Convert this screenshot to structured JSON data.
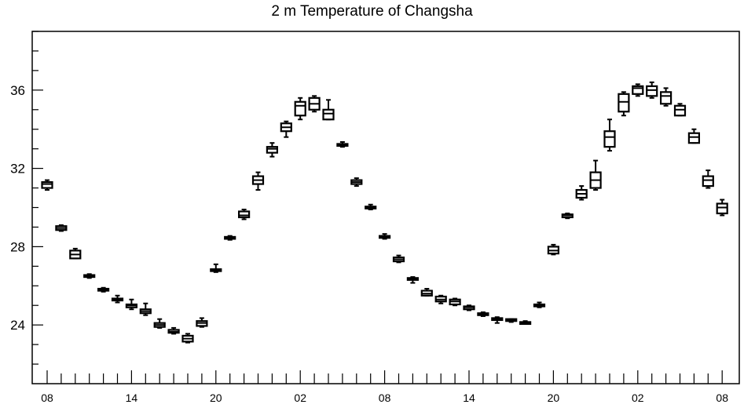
{
  "chart_data": {
    "type": "boxplot",
    "title": "2 m Temperature of Changsha",
    "xlabel": "",
    "ylabel": "",
    "ylim": [
      21,
      39
    ],
    "yticks": [
      24,
      28,
      32,
      36
    ],
    "xticks": [
      "08",
      "14",
      "20",
      "02",
      "08",
      "14",
      "20",
      "02",
      "08"
    ],
    "grid": false,
    "boxes": [
      {
        "x": 0,
        "min": 30.9,
        "q1": 31.0,
        "median": 31.2,
        "q3": 31.3,
        "max": 31.4
      },
      {
        "x": 1,
        "min": 28.8,
        "q1": 28.85,
        "median": 28.95,
        "q3": 29.05,
        "max": 29.1
      },
      {
        "x": 2,
        "min": 27.4,
        "q1": 27.4,
        "median": 27.6,
        "q3": 27.8,
        "max": 27.9
      },
      {
        "x": 3,
        "min": 26.4,
        "q1": 26.45,
        "median": 26.5,
        "q3": 26.55,
        "max": 26.6
      },
      {
        "x": 4,
        "min": 25.7,
        "q1": 25.75,
        "median": 25.8,
        "q3": 25.85,
        "max": 25.9
      },
      {
        "x": 5,
        "min": 25.15,
        "q1": 25.25,
        "median": 25.3,
        "q3": 25.35,
        "max": 25.5
      },
      {
        "x": 6,
        "min": 24.8,
        "q1": 24.9,
        "median": 25.0,
        "q3": 25.05,
        "max": 25.3
      },
      {
        "x": 7,
        "min": 24.5,
        "q1": 24.6,
        "median": 24.7,
        "q3": 24.8,
        "max": 25.1
      },
      {
        "x": 8,
        "min": 23.85,
        "q1": 23.9,
        "median": 24.0,
        "q3": 24.1,
        "max": 24.3
      },
      {
        "x": 9,
        "min": 23.55,
        "q1": 23.6,
        "median": 23.65,
        "q3": 23.75,
        "max": 23.85
      },
      {
        "x": 10,
        "min": 23.1,
        "q1": 23.15,
        "median": 23.3,
        "q3": 23.45,
        "max": 23.55
      },
      {
        "x": 11,
        "min": 23.9,
        "q1": 23.95,
        "median": 24.1,
        "q3": 24.2,
        "max": 24.35
      },
      {
        "x": 12,
        "min": 26.7,
        "q1": 26.75,
        "median": 26.8,
        "q3": 26.85,
        "max": 27.1
      },
      {
        "x": 13,
        "min": 28.35,
        "q1": 28.4,
        "median": 28.45,
        "q3": 28.5,
        "max": 28.55
      },
      {
        "x": 14,
        "min": 29.4,
        "q1": 29.5,
        "median": 29.6,
        "q3": 29.8,
        "max": 29.9
      },
      {
        "x": 15,
        "min": 30.9,
        "q1": 31.2,
        "median": 31.4,
        "q3": 31.6,
        "max": 31.8
      },
      {
        "x": 16,
        "min": 32.6,
        "q1": 32.8,
        "median": 33.0,
        "q3": 33.1,
        "max": 33.3
      },
      {
        "x": 17,
        "min": 33.6,
        "q1": 33.9,
        "median": 34.1,
        "q3": 34.3,
        "max": 34.4
      },
      {
        "x": 18,
        "min": 34.5,
        "q1": 34.7,
        "median": 35.2,
        "q3": 35.4,
        "max": 35.6
      },
      {
        "x": 19,
        "min": 34.9,
        "q1": 35.0,
        "median": 35.3,
        "q3": 35.6,
        "max": 35.7
      },
      {
        "x": 20,
        "min": 34.5,
        "q1": 34.5,
        "median": 34.8,
        "q3": 35.0,
        "max": 35.5
      },
      {
        "x": 21,
        "min": 33.1,
        "q1": 33.15,
        "median": 33.2,
        "q3": 33.25,
        "max": 33.35
      },
      {
        "x": 22,
        "min": 31.1,
        "q1": 31.2,
        "median": 31.3,
        "q3": 31.4,
        "max": 31.5
      },
      {
        "x": 23,
        "min": 29.9,
        "q1": 29.95,
        "median": 30.0,
        "q3": 30.05,
        "max": 30.15
      },
      {
        "x": 24,
        "min": 28.4,
        "q1": 28.45,
        "median": 28.5,
        "q3": 28.55,
        "max": 28.65
      },
      {
        "x": 25,
        "min": 27.2,
        "q1": 27.25,
        "median": 27.35,
        "q3": 27.45,
        "max": 27.55
      },
      {
        "x": 26,
        "min": 26.15,
        "q1": 26.3,
        "median": 26.35,
        "q3": 26.4,
        "max": 26.45
      },
      {
        "x": 27,
        "min": 25.5,
        "q1": 25.5,
        "median": 25.6,
        "q3": 25.75,
        "max": 25.85
      },
      {
        "x": 28,
        "min": 25.1,
        "q1": 25.2,
        "median": 25.3,
        "q3": 25.45,
        "max": 25.5
      },
      {
        "x": 29,
        "min": 25.0,
        "q1": 25.05,
        "median": 25.2,
        "q3": 25.3,
        "max": 25.35
      },
      {
        "x": 30,
        "min": 24.75,
        "q1": 24.8,
        "median": 24.9,
        "q3": 24.95,
        "max": 25.0
      },
      {
        "x": 31,
        "min": 24.45,
        "q1": 24.5,
        "median": 24.55,
        "q3": 24.6,
        "max": 24.65
      },
      {
        "x": 32,
        "min": 24.1,
        "q1": 24.25,
        "median": 24.3,
        "q3": 24.35,
        "max": 24.4
      },
      {
        "x": 33,
        "min": 24.15,
        "q1": 24.2,
        "median": 24.25,
        "q3": 24.3,
        "max": 24.3
      },
      {
        "x": 34,
        "min": 24.05,
        "q1": 24.1,
        "median": 24.1,
        "q3": 24.15,
        "max": 24.2
      },
      {
        "x": 35,
        "min": 24.9,
        "q1": 24.95,
        "median": 25.0,
        "q3": 25.05,
        "max": 25.15
      },
      {
        "x": 36,
        "min": 27.6,
        "q1": 27.65,
        "median": 27.8,
        "q3": 28.0,
        "max": 28.1
      },
      {
        "x": 37,
        "min": 29.45,
        "q1": 29.5,
        "median": 29.6,
        "q3": 29.65,
        "max": 29.7
      },
      {
        "x": 38,
        "min": 30.4,
        "q1": 30.5,
        "median": 30.7,
        "q3": 30.9,
        "max": 31.1
      },
      {
        "x": 39,
        "min": 30.9,
        "q1": 31.0,
        "median": 31.4,
        "q3": 31.8,
        "max": 32.4
      },
      {
        "x": 40,
        "min": 32.9,
        "q1": 33.1,
        "median": 33.6,
        "q3": 33.9,
        "max": 34.5
      },
      {
        "x": 41,
        "min": 34.7,
        "q1": 34.9,
        "median": 35.4,
        "q3": 35.8,
        "max": 35.9
      },
      {
        "x": 42,
        "min": 35.7,
        "q1": 35.8,
        "median": 36.1,
        "q3": 36.2,
        "max": 36.3
      },
      {
        "x": 43,
        "min": 35.6,
        "q1": 35.7,
        "median": 36.0,
        "q3": 36.2,
        "max": 36.4
      },
      {
        "x": 44,
        "min": 35.2,
        "q1": 35.3,
        "median": 35.7,
        "q3": 35.9,
        "max": 36.1
      },
      {
        "x": 45,
        "min": 34.7,
        "q1": 34.7,
        "median": 35.0,
        "q3": 35.2,
        "max": 35.3
      },
      {
        "x": 46,
        "min": 33.3,
        "q1": 33.3,
        "median": 33.6,
        "q3": 33.8,
        "max": 34.0
      },
      {
        "x": 47,
        "min": 31.0,
        "q1": 31.1,
        "median": 31.4,
        "q3": 31.6,
        "max": 31.9
      },
      {
        "x": 48,
        "min": 29.6,
        "q1": 29.7,
        "median": 30.0,
        "q3": 30.2,
        "max": 30.4
      }
    ]
  }
}
